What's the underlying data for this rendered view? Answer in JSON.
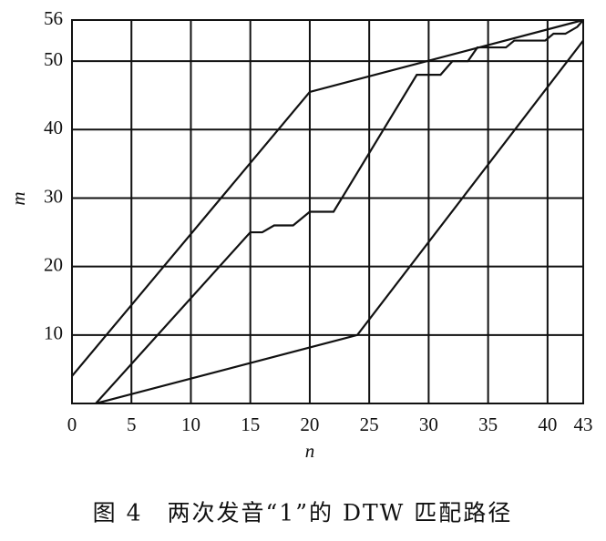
{
  "chart_data": {
    "type": "line",
    "caption": "图 4　两次发音“1”的 DTW 匹配路径",
    "xlabel": "n",
    "ylabel": "m",
    "xlim": [
      0,
      43
    ],
    "ylim": [
      0,
      56
    ],
    "xticks": [
      0,
      5,
      10,
      15,
      20,
      25,
      30,
      35,
      40,
      43
    ],
    "yticks": [
      10,
      20,
      30,
      40,
      50,
      56
    ],
    "grid": true,
    "series": [
      {
        "color": "#111111",
        "x": [
          0,
          20,
          43
        ],
        "values": [
          4,
          45.5,
          56
        ]
      },
      {
        "color": "#111111",
        "x": [
          2,
          24,
          43
        ],
        "values": [
          0,
          10,
          53
        ]
      },
      {
        "color": "#111111",
        "x": [
          2,
          15,
          16,
          17,
          18.6,
          20,
          22,
          29,
          31,
          32,
          33.3,
          34.1,
          36.5,
          37.2,
          39.8,
          40.5,
          41.5,
          42.5,
          43
        ],
        "values": [
          0,
          25,
          25,
          26,
          26,
          28,
          28,
          48,
          48,
          50,
          50,
          52,
          52,
          53,
          53,
          54,
          54,
          55,
          56
        ]
      }
    ]
  }
}
